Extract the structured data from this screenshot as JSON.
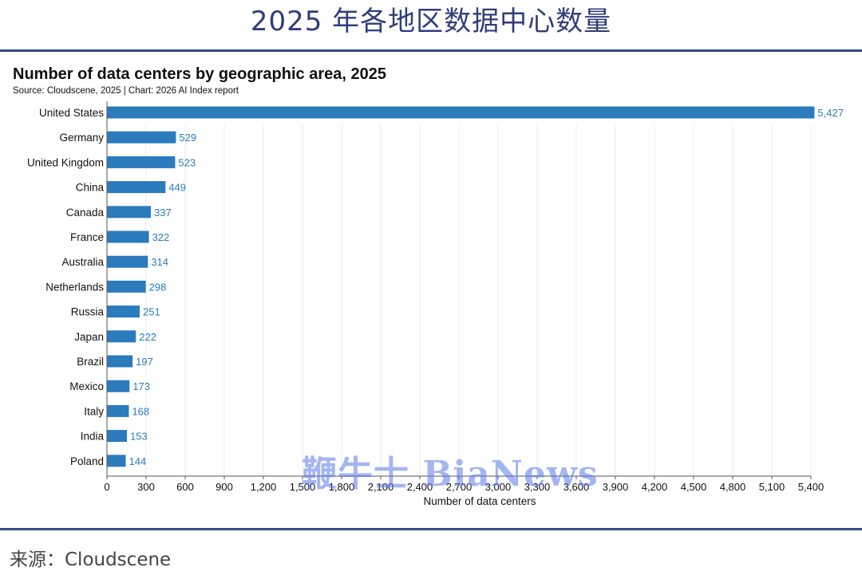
{
  "header": {
    "title": "2025 年各地区数据中心数量"
  },
  "chart_data": {
    "type": "bar",
    "orientation": "horizontal",
    "title": "Number of data centers by geographic area, 2025",
    "subtitle": "Source: Cloudscene, 2025 | Chart: 2026 AI Index report",
    "xlabel": "Number of data centers",
    "ylabel": "",
    "xlim": [
      0,
      5400
    ],
    "xticks": [
      0,
      300,
      600,
      900,
      1200,
      1500,
      1800,
      2100,
      2400,
      2700,
      3000,
      3300,
      3600,
      3900,
      4200,
      4500,
      4800,
      5100,
      5400
    ],
    "xtick_labels": [
      "0",
      "300",
      "600",
      "900",
      "1,200",
      "1,500",
      "1,800",
      "2,100",
      "2,400",
      "2,700",
      "3,000",
      "3,300",
      "3,600",
      "3,900",
      "4,200",
      "4,500",
      "4,800",
      "5,100",
      "5,400"
    ],
    "categories": [
      "United States",
      "Germany",
      "United Kingdom",
      "China",
      "Canada",
      "France",
      "Australia",
      "Netherlands",
      "Russia",
      "Japan",
      "Brazil",
      "Mexico",
      "Italy",
      "India",
      "Poland"
    ],
    "values": [
      5427,
      529,
      523,
      449,
      337,
      322,
      314,
      298,
      251,
      222,
      197,
      173,
      168,
      153,
      144
    ],
    "value_labels": [
      "5,427",
      "529",
      "523",
      "449",
      "337",
      "322",
      "314",
      "298",
      "251",
      "222",
      "197",
      "173",
      "168",
      "153",
      "144"
    ],
    "grid": true,
    "colors": {
      "bar": "#2b7bbd",
      "label": "#2b7bbd",
      "grid": "#ececec"
    }
  },
  "watermark": {
    "text": "鞭牛士 BiaNews"
  },
  "footer": {
    "source": "来源：Cloudscene"
  }
}
